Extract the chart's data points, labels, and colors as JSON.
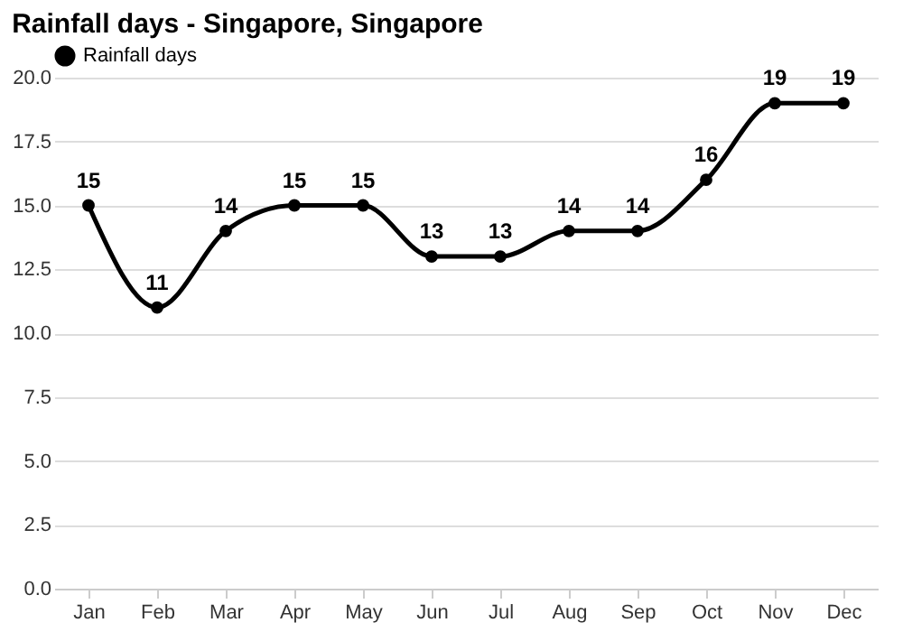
{
  "chart_data": {
    "type": "line",
    "title": "Rainfall days - Singapore, Singapore",
    "categories": [
      "Jan",
      "Feb",
      "Mar",
      "Apr",
      "May",
      "Jun",
      "Jul",
      "Aug",
      "Sep",
      "Oct",
      "Nov",
      "Dec"
    ],
    "series": [
      {
        "name": "Rainfall days",
        "color": "#000000",
        "values": [
          15,
          11,
          14,
          15,
          15,
          13,
          13,
          14,
          14,
          16,
          19,
          19
        ]
      }
    ],
    "ylim": [
      0,
      20
    ],
    "yticks": [
      {
        "value": 0,
        "label": "0.0"
      },
      {
        "value": 2.5,
        "label": "2.5"
      },
      {
        "value": 5,
        "label": "5.0"
      },
      {
        "value": 7.5,
        "label": "7.5"
      },
      {
        "value": 10,
        "label": "10.0"
      },
      {
        "value": 12.5,
        "label": "12.5"
      },
      {
        "value": 15,
        "label": "15.0"
      },
      {
        "value": 17.5,
        "label": "17.5"
      },
      {
        "value": 20,
        "label": "20.0"
      }
    ],
    "grid": "y",
    "legend": "top left",
    "marker": "circle",
    "line_style": "solid",
    "data_labels": true
  }
}
